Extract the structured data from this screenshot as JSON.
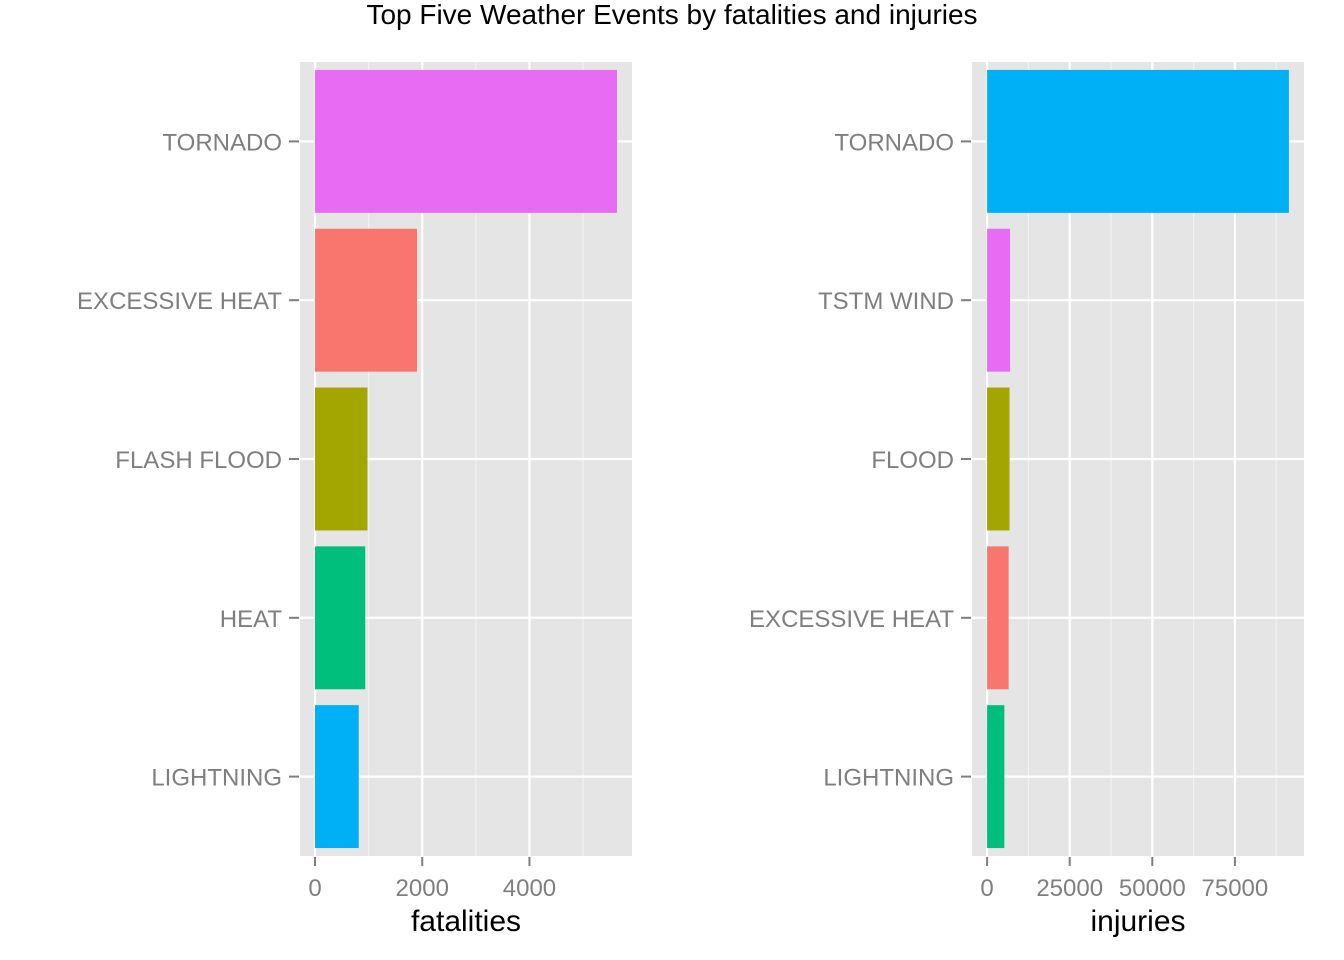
{
  "title": "Top Five Weather Events by fatalities and injuries",
  "chart_data": [
    {
      "type": "bar",
      "orientation": "horizontal",
      "categories": [
        "TORNADO",
        "EXCESSIVE HEAT",
        "FLASH FLOOD",
        "HEAT",
        "LIGHTNING"
      ],
      "values": [
        5633,
        1903,
        978,
        937,
        816
      ],
      "colors": [
        "#E76BF3",
        "#F8766D",
        "#A3A500",
        "#00BF7D",
        "#00B0F6"
      ],
      "xlabel": "fatalities",
      "xticks": [
        0,
        2000,
        4000
      ],
      "xtick_labels": [
        "0",
        "2000",
        "4000"
      ],
      "xlim": [
        -280,
        5913
      ],
      "grid": true
    },
    {
      "type": "bar",
      "orientation": "horizontal",
      "categories": [
        "TORNADO",
        "TSTM WIND",
        "FLOOD",
        "EXCESSIVE HEAT",
        "LIGHTNING"
      ],
      "values": [
        91346,
        6957,
        6789,
        6525,
        5230
      ],
      "colors": [
        "#00B0F6",
        "#E76BF3",
        "#A3A500",
        "#F8766D",
        "#00BF7D"
      ],
      "xlabel": "injuries",
      "xticks": [
        0,
        25000,
        50000,
        75000
      ],
      "xtick_labels": [
        "0",
        "25000",
        "50000",
        "75000"
      ],
      "xlim": [
        -4567,
        95913
      ],
      "grid": true
    }
  ]
}
